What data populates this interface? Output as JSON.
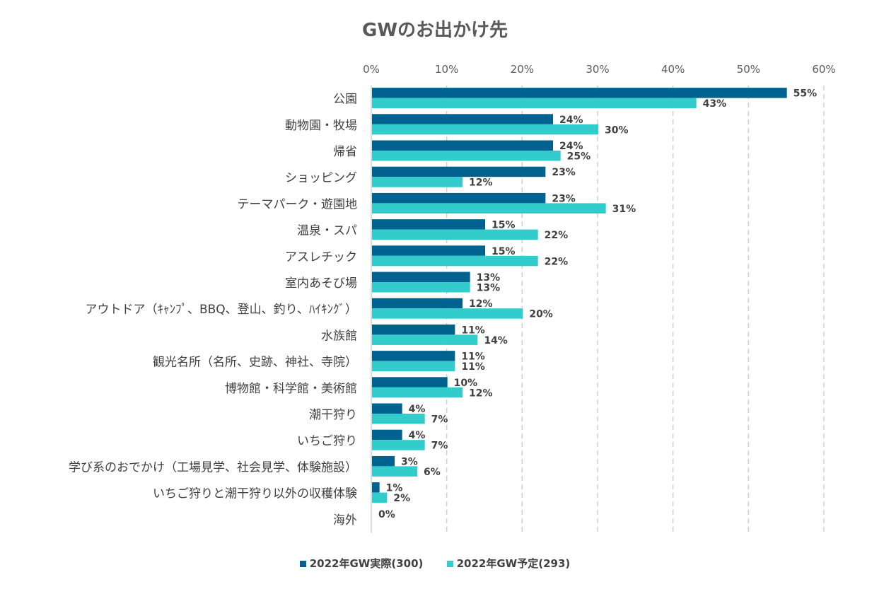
{
  "chart_data": {
    "type": "bar",
    "orientation": "horizontal",
    "title": "GWのお出かけ先",
    "categories": [
      "公園",
      "動物園・牧場",
      "帰省",
      "ショッピング",
      "テーマパーク・遊園地",
      "温泉・スパ",
      "アスレチック",
      "室内あそび場",
      "アウトドア（ｷｬﾝﾌﾟ、BBQ、登山、釣り、ﾊｲｷﾝｸﾞ）",
      "水族館",
      "観光名所（名所、史跡、神社、寺院）",
      "博物館・科学館・美術館",
      "潮干狩り",
      "いちご狩り",
      "学び系のおでかけ（工場見学、社会見学、体験施設）",
      "いちご狩りと潮干狩り以外の収穫体験",
      "海外"
    ],
    "series": [
      {
        "name": "2022年GW実際(300)",
        "color": "#00628F",
        "values": [
          55,
          24,
          24,
          23,
          23,
          15,
          15,
          13,
          12,
          11,
          11,
          10,
          4,
          4,
          3,
          1,
          0
        ],
        "labels": [
          "55%",
          "24%",
          "24%",
          "23%",
          "23%",
          "15%",
          "15%",
          "13%",
          "12%",
          "11%",
          "11%",
          "10%",
          "4%",
          "4%",
          "3%",
          "1%",
          "0%"
        ]
      },
      {
        "name": "2022年GW予定(293)",
        "color": "#33CCCC",
        "values": [
          43,
          30,
          25,
          12,
          31,
          22,
          22,
          13,
          20,
          14,
          11,
          12,
          7,
          7,
          6,
          2,
          0
        ],
        "labels": [
          "43%",
          "30%",
          "25%",
          "12%",
          "31%",
          "22%",
          "22%",
          "13%",
          "20%",
          "14%",
          "11%",
          "12%",
          "7%",
          "7%",
          "6%",
          "2%",
          ""
        ]
      }
    ],
    "xlim": [
      0,
      60
    ],
    "xticks": [
      "0%",
      "10%",
      "20%",
      "30%",
      "40%",
      "50%",
      "60%"
    ],
    "xaxis_position": "top",
    "grid": "vertical dashed",
    "legend": "bottom"
  }
}
